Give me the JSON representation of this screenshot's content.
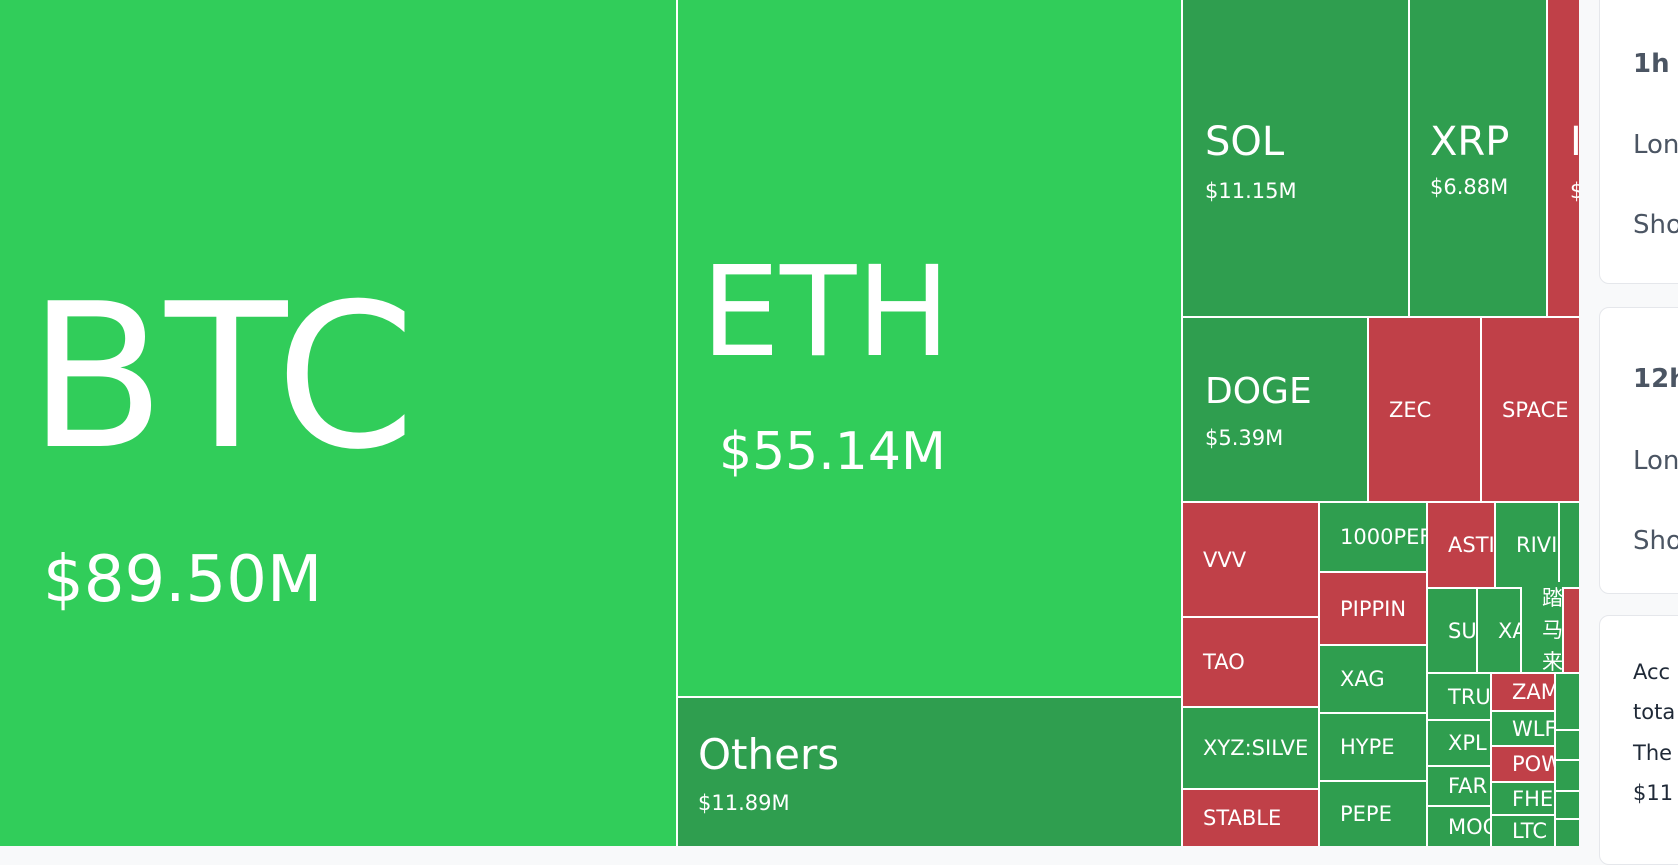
{
  "colors": {
    "long_bright": "#31cd5a",
    "long": "#2f9e4f",
    "short": "#c04048"
  },
  "treemap": {
    "btc": {
      "label": "BTC",
      "value": "$89.50M"
    },
    "eth": {
      "label": "ETH",
      "value": "$55.14M"
    },
    "others": {
      "label": "Others",
      "value": "$11.89M"
    },
    "sol": {
      "label": "SOL",
      "value": "$11.15M"
    },
    "xrp": {
      "label": "XRP",
      "value": "$6.88M"
    },
    "i": {
      "label": "I",
      "value": "$"
    },
    "doge": {
      "label": "DOGE",
      "value": "$5.39M"
    },
    "small": [
      "ZEC",
      "SPACE",
      "VVV",
      "TAO",
      "XYZ:SILVE",
      "STABLE",
      "1000PEF",
      "PIPPIN",
      "XAG",
      "HYPE",
      "PEPE",
      "ASTI",
      "RIVI",
      "SU",
      "XA",
      "踏马来",
      "TRU",
      "XPL",
      "FAR",
      "MOC",
      "ZAM",
      "WLF",
      "POW",
      "FHE",
      "LTC"
    ]
  },
  "side": {
    "card1": {
      "title": "1h",
      "long": "Lon",
      "short": "Sho"
    },
    "card2": {
      "title": "12h",
      "long": "Lon",
      "short": "Sho"
    },
    "card3": {
      "lines": [
        "Acc",
        "tota",
        "The",
        "$11"
      ]
    }
  }
}
